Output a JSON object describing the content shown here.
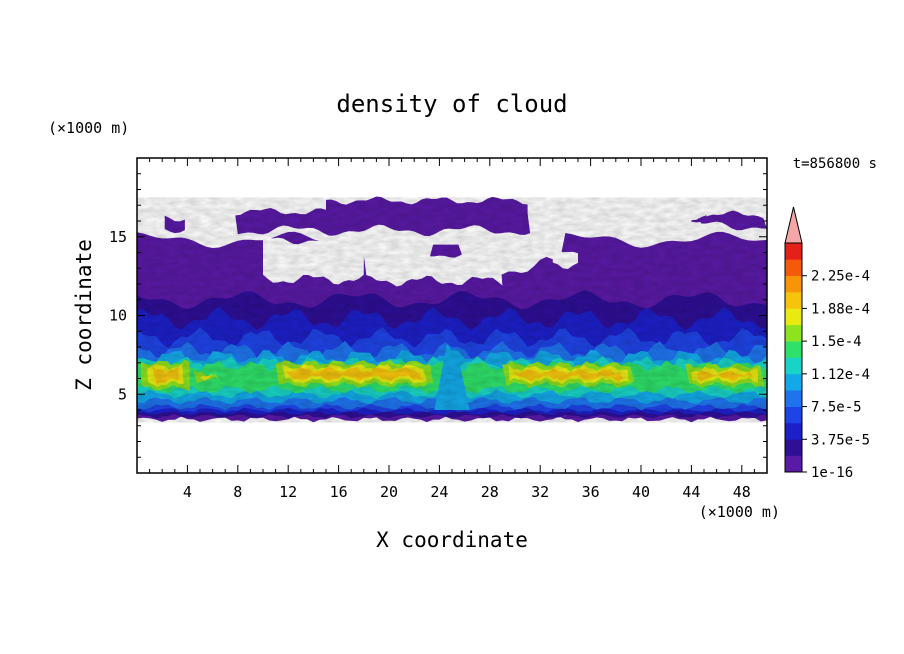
{
  "chart_data": {
    "type": "heatmap",
    "title": "density of cloud",
    "xlabel": "X coordinate",
    "ylabel": "Z coordinate",
    "x_unit": "(×1000 m)",
    "y_unit": "(×1000 m)",
    "time_label": "t=856800 s",
    "xlim": [
      0,
      50
    ],
    "ylim": [
      0,
      20
    ],
    "x_ticks": [
      4,
      8,
      12,
      16,
      20,
      24,
      28,
      32,
      36,
      40,
      44,
      48
    ],
    "y_ticks": [
      5,
      10,
      15
    ],
    "colorbar": {
      "tick_labels": [
        "2.25e-4",
        "1.88e-4",
        "1.5e-4",
        "1.12e-4",
        "7.5e-5",
        "3.75e-5",
        "1e-16"
      ],
      "levels": [
        "1e-16",
        "1.875e-5",
        "3.75e-5",
        "5.625e-5",
        "7.5e-5",
        "9.375e-5",
        "1.12e-4",
        "1.31e-4",
        "1.5e-4",
        "1.69e-4",
        "1.88e-4",
        "2.06e-4",
        "2.25e-4",
        "2.44e-4"
      ],
      "colors": [
        "#5a1aa6",
        "#2e0f96",
        "#1d20c9",
        "#1f44e6",
        "#1f74ee",
        "#13a9e8",
        "#19d3c6",
        "#2fe06a",
        "#8ee21f",
        "#e8ea12",
        "#f6c40d",
        "#f79508",
        "#f45a0c",
        "#e4201a"
      ],
      "overflow_color": "#f4a7a7"
    },
    "cloud_bands": [
      {
        "z_range": [
          3.2,
          17.5
        ],
        "value": "1e-16",
        "description_level": "lowest"
      },
      {
        "z_range": [
          3.5,
          11
        ],
        "value": "3.75e-5"
      },
      {
        "z_range": [
          4.5,
          7.5
        ],
        "value": "1.5e-4"
      },
      {
        "z_range": [
          5.5,
          7
        ],
        "value": "2.25e-4"
      }
    ]
  }
}
